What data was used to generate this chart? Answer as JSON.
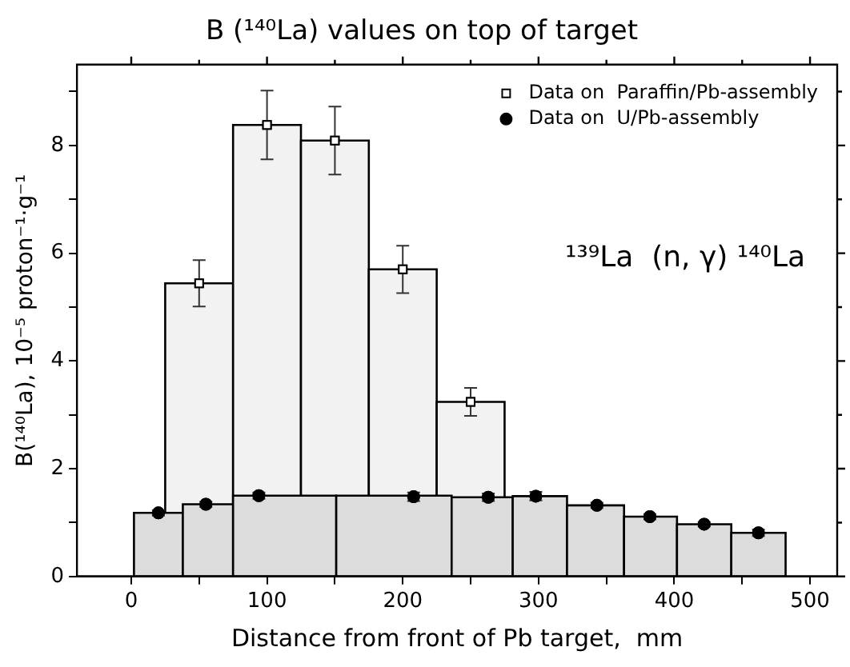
{
  "chart_data": {
    "type": "histogram",
    "title": "B (¹⁴⁰La) values on top of target",
    "xlabel": "Distance from front of Pb target,  mm",
    "ylabel": "B(¹⁴⁰La), 10⁻⁵ proton⁻¹·g⁻¹",
    "annotations": [
      "¹³⁹La  (n, γ) ¹⁴⁰La"
    ],
    "xlim": [
      -40,
      520
    ],
    "xticks": [
      0,
      {
        "value": 50,
        "label": null
      },
      100,
      {
        "value": 150,
        "label": null
      },
      200,
      {
        "value": 250,
        "label": null
      },
      300,
      {
        "value": 350,
        "label": null
      },
      400,
      {
        "value": 450,
        "label": null
      },
      500
    ],
    "ylim": [
      0,
      9.5
    ],
    "yticks": [
      0,
      {
        "value": 1,
        "label": null
      },
      2,
      {
        "value": 3,
        "label": null
      },
      4,
      {
        "value": 5,
        "label": null
      },
      6,
      {
        "value": 7,
        "label": null
      },
      8,
      {
        "value": 9,
        "label": null
      }
    ],
    "grid": false,
    "legend": "top right",
    "series": [
      {
        "color": "#f2f2f2",
        "bins": [
          25,
          75,
          125,
          175,
          225,
          275
        ],
        "values": [
          5.44,
          8.38,
          8.09,
          5.7,
          3.24
        ]
      },
      {
        "color": "#dcdcdc",
        "bins": [
          2,
          38,
          75,
          151,
          236,
          281,
          321,
          363,
          402,
          442,
          482
        ],
        "values": [
          1.18,
          1.34,
          1.5,
          1.5,
          1.47,
          1.49,
          1.32,
          1.11,
          0.97,
          0.81
        ]
      },
      {
        "type": "scatter",
        "name": "Data on  Paraffin/Pb-assembly",
        "color": "#ffffff",
        "marker": "square",
        "x": [
          50,
          100,
          150,
          200,
          250
        ],
        "values": [
          5.44,
          8.38,
          8.09,
          5.7,
          3.24
        ],
        "errors": [
          0.43,
          0.64,
          0.63,
          0.44,
          0.26
        ]
      },
      {
        "type": "scatter",
        "name": "Data on  U/Pb-assembly",
        "color": "#000000",
        "marker": "circle",
        "x": [
          20,
          55,
          94,
          208,
          263,
          298,
          343,
          382,
          422,
          462
        ],
        "values": [
          1.18,
          1.34,
          1.5,
          1.48,
          1.47,
          1.49,
          1.32,
          1.11,
          0.97,
          0.81
        ],
        "errors": [
          0.05,
          0.05,
          0.06,
          0.08,
          0.07,
          0.08,
          0.05,
          0.05,
          0.04,
          0.06
        ]
      }
    ]
  }
}
